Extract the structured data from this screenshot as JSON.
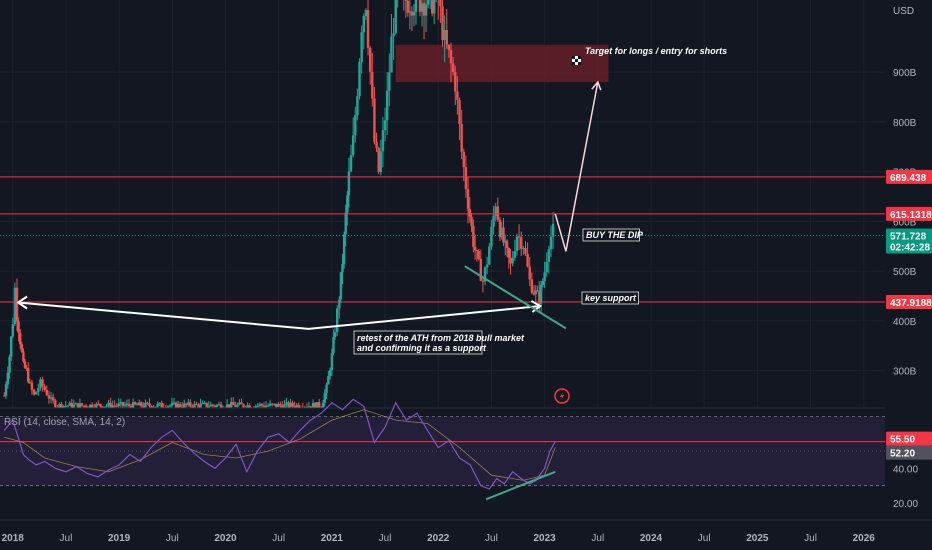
{
  "chart_data": {
    "type": "candlestick",
    "currency": "USD",
    "price_axis": {
      "ticks": [
        {
          "value": 300,
          "label": "300B"
        },
        {
          "value": 400,
          "label": "400B"
        },
        {
          "value": 500,
          "label": "500B"
        },
        {
          "value": 600,
          "label": "600B"
        },
        {
          "value": 700,
          "label": "700B"
        },
        {
          "value": 800,
          "label": "800B"
        },
        {
          "value": 900,
          "label": "900B"
        }
      ],
      "range": [
        225,
        1045
      ]
    },
    "time_axis": {
      "ticks": [
        {
          "t": 2018.0,
          "label": "2018"
        },
        {
          "t": 2018.5,
          "label": "Jul"
        },
        {
          "t": 2019.0,
          "label": "2019"
        },
        {
          "t": 2019.5,
          "label": "Jul"
        },
        {
          "t": 2020.0,
          "label": "2020"
        },
        {
          "t": 2020.5,
          "label": "Jul"
        },
        {
          "t": 2021.0,
          "label": "2021"
        },
        {
          "t": 2021.5,
          "label": "Jul"
        },
        {
          "t": 2022.0,
          "label": "2022"
        },
        {
          "t": 2022.5,
          "label": "Jul"
        },
        {
          "t": 2023.0,
          "label": "2023"
        },
        {
          "t": 2023.5,
          "label": "Jul"
        },
        {
          "t": 2024.0,
          "label": "2024"
        },
        {
          "t": 2024.5,
          "label": "Jul"
        },
        {
          "t": 2025.0,
          "label": "2025"
        },
        {
          "t": 2025.5,
          "label": "Jul"
        },
        {
          "t": 2026.0,
          "label": "2026"
        }
      ],
      "range": [
        2017.88,
        2026.2
      ]
    },
    "price_path": [
      [
        2017.92,
        250
      ],
      [
        2017.97,
        330
      ],
      [
        2018.0,
        400
      ],
      [
        2018.02,
        465
      ],
      [
        2018.04,
        410
      ],
      [
        2018.07,
        360
      ],
      [
        2018.1,
        310
      ],
      [
        2018.13,
        300
      ],
      [
        2018.16,
        270
      ],
      [
        2018.2,
        250
      ],
      [
        2018.26,
        275
      ],
      [
        2018.3,
        262
      ],
      [
        2018.36,
        240
      ],
      [
        2018.42,
        230
      ],
      [
        2020.9,
        230
      ],
      [
        2020.95,
        265
      ],
      [
        2021.0,
        330
      ],
      [
        2021.03,
        385
      ],
      [
        2021.07,
        450
      ],
      [
        2021.1,
        520
      ],
      [
        2021.13,
        610
      ],
      [
        2021.16,
        690
      ],
      [
        2021.2,
        760
      ],
      [
        2021.24,
        870
      ],
      [
        2021.28,
        1000
      ],
      [
        2021.32,
        1045
      ],
      [
        2021.36,
        900
      ],
      [
        2021.4,
        760
      ],
      [
        2021.44,
        700
      ],
      [
        2021.48,
        770
      ],
      [
        2021.52,
        850
      ],
      [
        2021.56,
        960
      ],
      [
        2021.6,
        1045
      ],
      [
        2022.0,
        1045
      ],
      [
        2022.06,
        960
      ],
      [
        2022.1,
        930
      ],
      [
        2022.16,
        880
      ],
      [
        2022.22,
        740
      ],
      [
        2022.28,
        640
      ],
      [
        2022.33,
        560
      ],
      [
        2022.38,
        510
      ],
      [
        2022.42,
        480
      ],
      [
        2022.46,
        520
      ],
      [
        2022.5,
        580
      ],
      [
        2022.54,
        640
      ],
      [
        2022.58,
        585
      ],
      [
        2022.63,
        545
      ],
      [
        2022.68,
        510
      ],
      [
        2022.74,
        575
      ],
      [
        2022.8,
        555
      ],
      [
        2022.86,
        480
      ],
      [
        2022.9,
        460
      ],
      [
        2022.95,
        445
      ],
      [
        2023.0,
        500
      ],
      [
        2023.04,
        560
      ],
      [
        2023.08,
        580
      ],
      [
        2023.1,
        572
      ]
    ],
    "horizontal_levels": [
      {
        "value": 689.438,
        "label": "689.438"
      },
      {
        "value": 615.1318,
        "label": "615.1318"
      },
      {
        "value": 437.9188,
        "label": "437.9188"
      }
    ],
    "current_price": {
      "value": 571.728,
      "label": "571.728",
      "countdown": "02:42:28"
    },
    "target_zone": {
      "from": 2021.6,
      "to": 2023.6,
      "low": 880,
      "high": 955
    },
    "projection_path": [
      [
        2023.1,
        615
      ],
      [
        2023.2,
        540
      ],
      [
        2023.5,
        880
      ]
    ],
    "support_arrow": [
      [
        2018.05,
        437
      ],
      [
        2020.78,
        384
      ],
      [
        2022.96,
        430
      ]
    ],
    "channel_line": [
      [
        2022.25,
        510
      ],
      [
        2023.2,
        385
      ]
    ],
    "annotations": {
      "target": "Target for longs / entry for shorts",
      "buy_the_dip": "BUY THE DIP",
      "key_support": "key support",
      "retest_line1": "retest of the ATH from 2018 bull market",
      "retest_line2": "and confirming it as a support"
    },
    "rsi": {
      "label": "RSI (14, close, SMA, 14, 2)",
      "value": 55.5,
      "value_label": "55.50",
      "sma": 52.2,
      "sma_label": "52.20",
      "ticks": [
        {
          "value": 40,
          "label": "40.00"
        },
        {
          "value": 20,
          "label": "20.00"
        }
      ],
      "range": [
        10,
        75
      ],
      "upper_band": 70,
      "lower_band": 30,
      "path": [
        [
          2017.92,
          62
        ],
        [
          2018.0,
          68
        ],
        [
          2018.05,
          58
        ],
        [
          2018.1,
          48
        ],
        [
          2018.15,
          45
        ],
        [
          2018.22,
          42
        ],
        [
          2018.3,
          44
        ],
        [
          2018.4,
          40
        ],
        [
          2018.5,
          38
        ],
        [
          2018.6,
          41
        ],
        [
          2018.7,
          37
        ],
        [
          2018.8,
          35
        ],
        [
          2018.9,
          39
        ],
        [
          2019.0,
          42
        ],
        [
          2019.1,
          48
        ],
        [
          2019.2,
          44
        ],
        [
          2019.3,
          52
        ],
        [
          2019.4,
          58
        ],
        [
          2019.5,
          62
        ],
        [
          2019.6,
          55
        ],
        [
          2019.7,
          49
        ],
        [
          2019.8,
          44
        ],
        [
          2019.9,
          40
        ],
        [
          2020.0,
          46
        ],
        [
          2020.1,
          54
        ],
        [
          2020.2,
          38
        ],
        [
          2020.3,
          50
        ],
        [
          2020.4,
          58
        ],
        [
          2020.5,
          60
        ],
        [
          2020.6,
          55
        ],
        [
          2020.7,
          62
        ],
        [
          2020.8,
          68
        ],
        [
          2020.9,
          72
        ],
        [
          2021.0,
          78
        ],
        [
          2021.1,
          74
        ],
        [
          2021.2,
          80
        ],
        [
          2021.3,
          76
        ],
        [
          2021.4,
          55
        ],
        [
          2021.5,
          64
        ],
        [
          2021.6,
          78
        ],
        [
          2021.7,
          68
        ],
        [
          2021.8,
          72
        ],
        [
          2021.9,
          62
        ],
        [
          2022.0,
          52
        ],
        [
          2022.1,
          56
        ],
        [
          2022.2,
          46
        ],
        [
          2022.3,
          42
        ],
        [
          2022.4,
          30
        ],
        [
          2022.48,
          28
        ],
        [
          2022.55,
          34
        ],
        [
          2022.62,
          31
        ],
        [
          2022.7,
          38
        ],
        [
          2022.78,
          34
        ],
        [
          2022.86,
          31
        ],
        [
          2022.92,
          33
        ],
        [
          2023.0,
          40
        ],
        [
          2023.05,
          50
        ],
        [
          2023.1,
          55.5
        ]
      ],
      "sma_path": [
        [
          2017.92,
          58
        ],
        [
          2018.1,
          55
        ],
        [
          2018.3,
          46
        ],
        [
          2018.6,
          41
        ],
        [
          2018.9,
          38
        ],
        [
          2019.2,
          45
        ],
        [
          2019.5,
          55
        ],
        [
          2019.8,
          48
        ],
        [
          2020.1,
          46
        ],
        [
          2020.4,
          50
        ],
        [
          2020.7,
          57
        ],
        [
          2021.0,
          68
        ],
        [
          2021.3,
          74
        ],
        [
          2021.6,
          68
        ],
        [
          2021.9,
          66
        ],
        [
          2022.2,
          52
        ],
        [
          2022.5,
          36
        ],
        [
          2022.8,
          33
        ],
        [
          2023.0,
          36
        ],
        [
          2023.1,
          52.2
        ]
      ],
      "divergence_line": [
        [
          2022.45,
          22
        ],
        [
          2023.1,
          38
        ]
      ]
    },
    "colors": {
      "up": "#26a69a",
      "down": "#ef5350",
      "level": "#f23645",
      "current": "#089981",
      "rsi": "#7e57c2",
      "rsi_band_fill": "#2a2340",
      "target_fill": "#6b1f2a",
      "channel": "#3fa88c",
      "background": "#131722"
    }
  }
}
